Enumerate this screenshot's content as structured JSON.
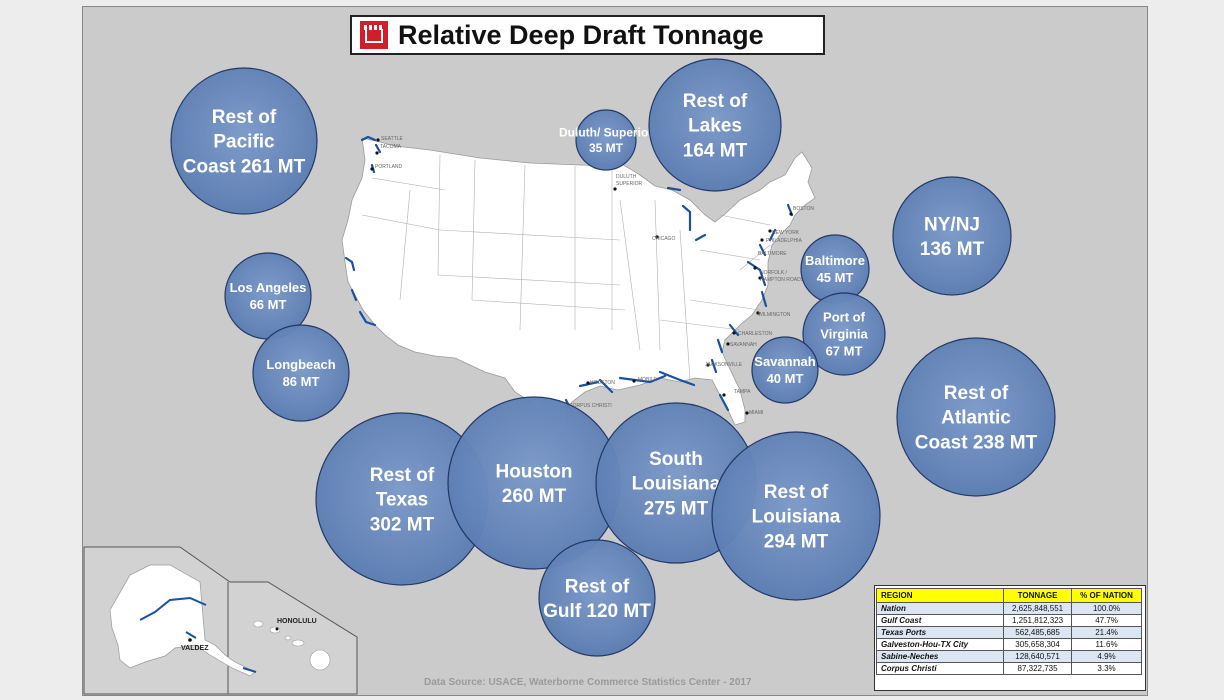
{
  "title": "Relative Deep Draft Tonnage",
  "source": "Data Source: USACE, Waterborne Commerce Statistics Center - 2017",
  "colors": {
    "bubble": "#5b7db3",
    "bubble_edge": "#1f3563",
    "water_line": "#1b4fa0",
    "background": "#cbcbcb"
  },
  "bubbles": [
    {
      "key": "pacific",
      "lines": [
        "Rest of",
        "Pacific",
        "Coast 261 MT"
      ]
    },
    {
      "key": "duluth",
      "lines": [
        "Duluth/ Superior",
        "35 MT"
      ]
    },
    {
      "key": "lakes",
      "lines": [
        "Rest of",
        "Lakes",
        "164 MT"
      ]
    },
    {
      "key": "nynj",
      "lines": [
        "NY/NJ",
        "136 MT"
      ]
    },
    {
      "key": "baltimore",
      "lines": [
        "Baltimore",
        "45 MT"
      ]
    },
    {
      "key": "virginia",
      "lines": [
        "Port of",
        "Virginia",
        "67 MT"
      ]
    },
    {
      "key": "savannah",
      "lines": [
        "Savannah",
        "40 MT"
      ]
    },
    {
      "key": "atlantic",
      "lines": [
        "Rest of",
        "Atlantic",
        "Coast 238 MT"
      ]
    },
    {
      "key": "losangeles",
      "lines": [
        "Los Angeles",
        "66 MT"
      ]
    },
    {
      "key": "longbeach",
      "lines": [
        "Longbeach",
        "86 MT"
      ]
    },
    {
      "key": "resttexas",
      "lines": [
        "Rest of",
        "Texas",
        "302 MT"
      ]
    },
    {
      "key": "houston",
      "lines": [
        "Houston",
        "260 MT"
      ]
    },
    {
      "key": "southla",
      "lines": [
        "South",
        "Louisiana",
        "275 MT"
      ]
    },
    {
      "key": "restla",
      "lines": [
        "Rest of",
        "Louisiana",
        "294 MT"
      ]
    },
    {
      "key": "gulf",
      "lines": [
        "Rest of",
        "Gulf 120 MT"
      ]
    }
  ],
  "city_labels": [
    "SEATTLE",
    "TACOMA",
    "PORTLAND",
    "DULUTH",
    "SUPERIOR",
    "CHICAGO",
    "BOSTON",
    "NEW YORK",
    "PHILADELPHIA",
    "BALTIMORE",
    "NORFOLK /",
    "HAMPTON ROADS",
    "WILMINGTON",
    "CHARLESTON",
    "SAVANNAH",
    "JACKSONVILLE",
    "TAMPA",
    "MIAMI",
    "MOBILE",
    "HOUSTON",
    "CORPUS CHRISTI"
  ],
  "inset_labels": {
    "valdez": "VALDEZ",
    "honolulu": "HONOLULU"
  },
  "table": {
    "headers": [
      "REGION",
      "TONNAGE",
      "% OF NATION"
    ],
    "rows": [
      [
        "Nation",
        "2,625,848,551",
        "100.0%"
      ],
      [
        "Gulf Coast",
        "1,251,812,323",
        "47.7%"
      ],
      [
        "Texas Ports",
        "562,485,685",
        "21.4%"
      ],
      [
        "Galveston-Hou-TX City",
        "305,658,304",
        "11.6%"
      ],
      [
        "Sabine-Neches",
        "128,640,571",
        "4.9%"
      ],
      [
        "Corpus Christi",
        "87,322,735",
        "3.3%"
      ]
    ]
  }
}
